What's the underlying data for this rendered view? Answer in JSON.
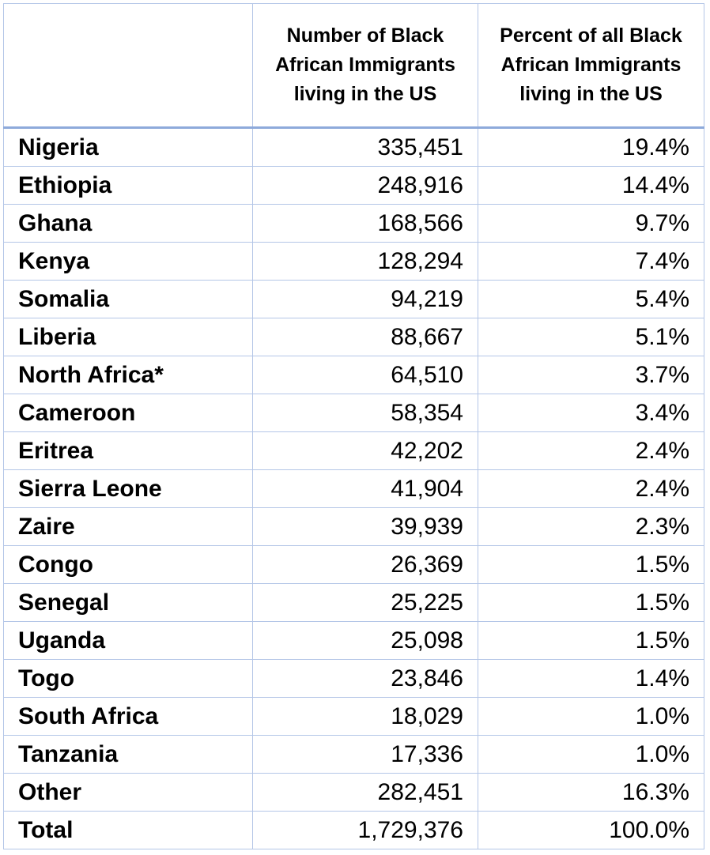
{
  "table": {
    "headers": [
      "",
      "Number of Black African Immigrants living in the US",
      "Percent of all Black African Immigrants living in the US"
    ],
    "rows": [
      {
        "country": "Nigeria",
        "number": "335,451",
        "percent": "19.4%"
      },
      {
        "country": "Ethiopia",
        "number": "248,916",
        "percent": "14.4%"
      },
      {
        "country": "Ghana",
        "number": "168,566",
        "percent": "9.7%"
      },
      {
        "country": "Kenya",
        "number": "128,294",
        "percent": "7.4%"
      },
      {
        "country": "Somalia",
        "number": "94,219",
        "percent": "5.4%"
      },
      {
        "country": "Liberia",
        "number": "88,667",
        "percent": "5.1%"
      },
      {
        "country": "North Africa*",
        "number": "64,510",
        "percent": "3.7%"
      },
      {
        "country": "Cameroon",
        "number": "58,354",
        "percent": "3.4%"
      },
      {
        "country": "Eritrea",
        "number": "42,202",
        "percent": "2.4%"
      },
      {
        "country": "Sierra Leone",
        "number": "41,904",
        "percent": "2.4%"
      },
      {
        "country": "Zaire",
        "number": "39,939",
        "percent": "2.3%"
      },
      {
        "country": "Congo",
        "number": "26,369",
        "percent": "1.5%"
      },
      {
        "country": "Senegal",
        "number": "25,225",
        "percent": "1.5%"
      },
      {
        "country": "Uganda",
        "number": "25,098",
        "percent": "1.5%"
      },
      {
        "country": "Togo",
        "number": "23,846",
        "percent": "1.4%"
      },
      {
        "country": "South Africa",
        "number": "18,029",
        "percent": "1.0%"
      },
      {
        "country": "Tanzania",
        "number": "17,336",
        "percent": "1.0%"
      },
      {
        "country": "Other",
        "number": "282,451",
        "percent": "16.3%"
      },
      {
        "country": "Total",
        "number": "1,729,376",
        "percent": "100.0%"
      }
    ]
  },
  "colors": {
    "grid": "#b4c6e7",
    "header_rule": "#8eaadb"
  }
}
